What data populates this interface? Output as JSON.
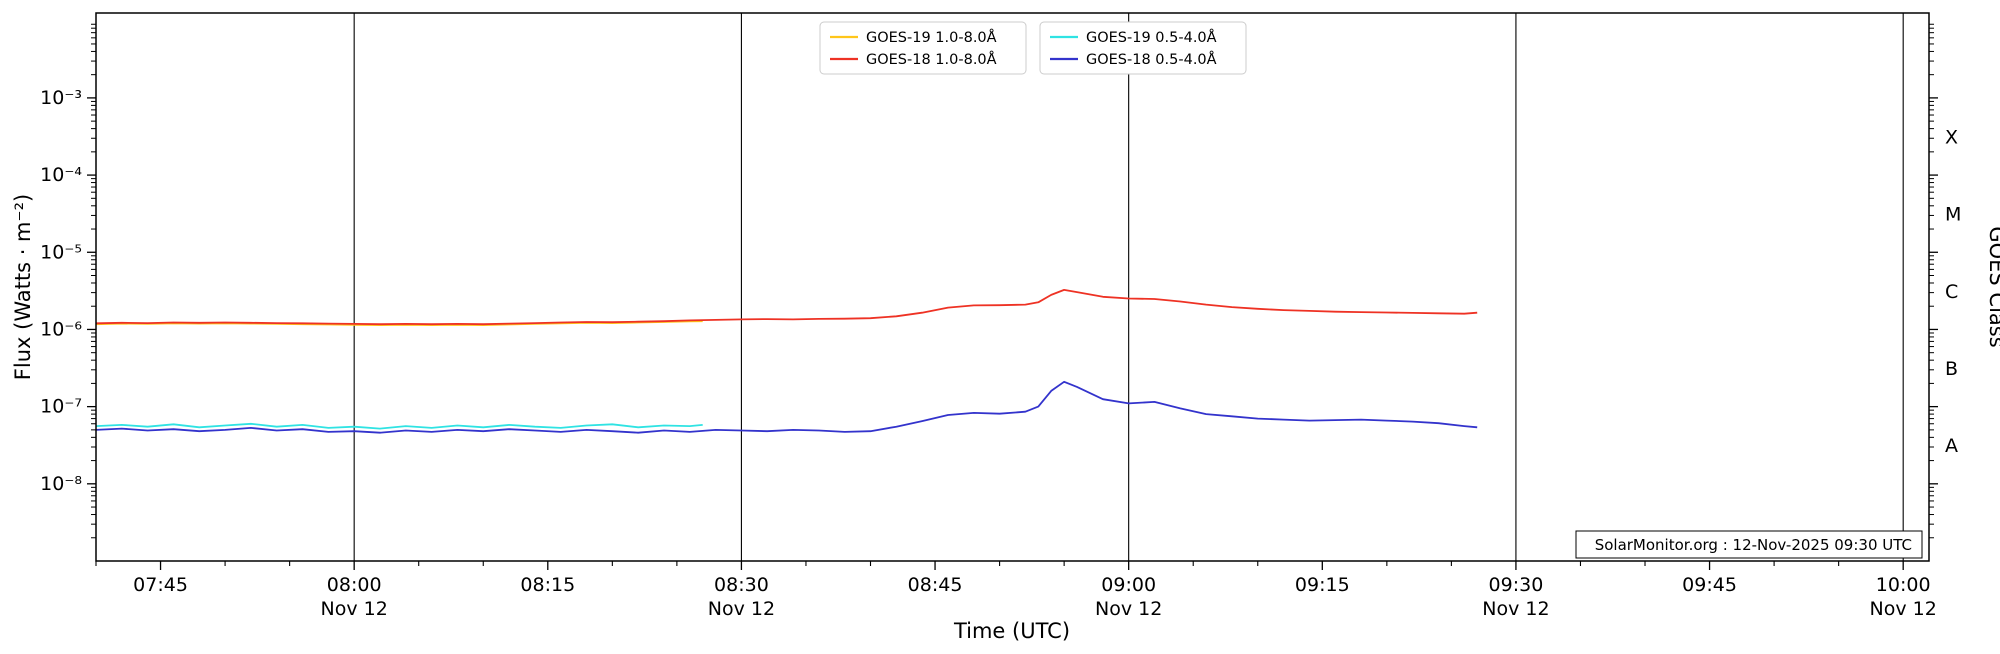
{
  "watermark": "SolarMonitor.org : 12-Nov-2025 09:30 UTC",
  "chart_data": {
    "type": "line",
    "title": "",
    "xlabel": "Time (UTC)",
    "ylabel": "Flux (Watts · m⁻²)",
    "ylabel_right": "GOES Class",
    "x_domain_minutes": [
      460,
      602
    ],
    "y_log_domain": [
      -9,
      -1.9
    ],
    "x_major_ticks": [
      {
        "t": 465,
        "label": "07:45"
      },
      {
        "t": 480,
        "label": "08:00",
        "day": "Nov 12"
      },
      {
        "t": 495,
        "label": "08:15"
      },
      {
        "t": 510,
        "label": "08:30",
        "day": "Nov 12"
      },
      {
        "t": 525,
        "label": "08:45"
      },
      {
        "t": 540,
        "label": "09:00",
        "day": "Nov 12"
      },
      {
        "t": 555,
        "label": "09:15"
      },
      {
        "t": 570,
        "label": "09:30",
        "day": "Nov 12"
      },
      {
        "t": 585,
        "label": "09:45"
      },
      {
        "t": 600,
        "label": "10:00",
        "day": "Nov 12"
      }
    ],
    "y_major_ticks": [
      {
        "exp": -3,
        "label": "10⁻³"
      },
      {
        "exp": -4,
        "label": "10⁻⁴"
      },
      {
        "exp": -5,
        "label": "10⁻⁵"
      },
      {
        "exp": -6,
        "label": "10⁻⁶"
      },
      {
        "exp": -7,
        "label": "10⁻⁷"
      },
      {
        "exp": -8,
        "label": "10⁻⁸"
      }
    ],
    "class_labels": [
      {
        "label": "X",
        "exp": -3.5
      },
      {
        "label": "M",
        "exp": -4.5
      },
      {
        "label": "C",
        "exp": -5.5
      },
      {
        "label": "B",
        "exp": -6.5
      },
      {
        "label": "A",
        "exp": -7.5
      }
    ],
    "vlines_minutes": [
      480,
      510,
      540,
      570,
      600
    ],
    "legend_columns": [
      [
        "GOES-19 1.0-8.0Å",
        "GOES-18 1.0-8.0Å"
      ],
      [
        "GOES-19 0.5-4.0Å",
        "GOES-18 0.5-4.0Å"
      ]
    ],
    "series": [
      {
        "name": "GOES-19 1.0-8.0Å",
        "color": "#ffc61a",
        "points": [
          [
            460,
            1.17e-06
          ],
          [
            462,
            1.19e-06
          ],
          [
            464,
            1.18e-06
          ],
          [
            466,
            1.2e-06
          ],
          [
            468,
            1.19e-06
          ],
          [
            470,
            1.2e-06
          ],
          [
            472,
            1.19e-06
          ],
          [
            474,
            1.18e-06
          ],
          [
            476,
            1.17e-06
          ],
          [
            478,
            1.16e-06
          ],
          [
            480,
            1.15e-06
          ],
          [
            482,
            1.14e-06
          ],
          [
            484,
            1.15e-06
          ],
          [
            486,
            1.14e-06
          ],
          [
            488,
            1.15e-06
          ],
          [
            490,
            1.14e-06
          ],
          [
            492,
            1.16e-06
          ],
          [
            494,
            1.18e-06
          ],
          [
            496,
            1.2e-06
          ],
          [
            498,
            1.22e-06
          ],
          [
            500,
            1.21e-06
          ],
          [
            502,
            1.23e-06
          ],
          [
            504,
            1.25e-06
          ],
          [
            506,
            1.27e-06
          ],
          [
            507,
            1.28e-06
          ]
        ]
      },
      {
        "name": "GOES-18 1.0-8.0Å",
        "color": "#ee3224",
        "points": [
          [
            460,
            1.2e-06
          ],
          [
            462,
            1.22e-06
          ],
          [
            464,
            1.21e-06
          ],
          [
            466,
            1.23e-06
          ],
          [
            468,
            1.22e-06
          ],
          [
            470,
            1.23e-06
          ],
          [
            472,
            1.22e-06
          ],
          [
            474,
            1.21e-06
          ],
          [
            476,
            1.2e-06
          ],
          [
            478,
            1.19e-06
          ],
          [
            480,
            1.18e-06
          ],
          [
            482,
            1.17e-06
          ],
          [
            484,
            1.18e-06
          ],
          [
            486,
            1.17e-06
          ],
          [
            488,
            1.18e-06
          ],
          [
            490,
            1.17e-06
          ],
          [
            492,
            1.19e-06
          ],
          [
            494,
            1.21e-06
          ],
          [
            496,
            1.23e-06
          ],
          [
            498,
            1.25e-06
          ],
          [
            500,
            1.24e-06
          ],
          [
            502,
            1.26e-06
          ],
          [
            504,
            1.28e-06
          ],
          [
            506,
            1.31e-06
          ],
          [
            508,
            1.33e-06
          ],
          [
            510,
            1.35e-06
          ],
          [
            512,
            1.36e-06
          ],
          [
            514,
            1.35e-06
          ],
          [
            516,
            1.37e-06
          ],
          [
            518,
            1.38e-06
          ],
          [
            520,
            1.4e-06
          ],
          [
            522,
            1.48e-06
          ],
          [
            524,
            1.65e-06
          ],
          [
            526,
            1.92e-06
          ],
          [
            528,
            2.05e-06
          ],
          [
            530,
            2.06e-06
          ],
          [
            532,
            2.1e-06
          ],
          [
            533,
            2.25e-06
          ],
          [
            534,
            2.8e-06
          ],
          [
            535,
            3.25e-06
          ],
          [
            536,
            3.05e-06
          ],
          [
            538,
            2.65e-06
          ],
          [
            540,
            2.52e-06
          ],
          [
            542,
            2.48e-06
          ],
          [
            544,
            2.3e-06
          ],
          [
            546,
            2.1e-06
          ],
          [
            548,
            1.95e-06
          ],
          [
            550,
            1.85e-06
          ],
          [
            552,
            1.78e-06
          ],
          [
            554,
            1.74e-06
          ],
          [
            556,
            1.7e-06
          ],
          [
            558,
            1.68e-06
          ],
          [
            560,
            1.66e-06
          ],
          [
            562,
            1.64e-06
          ],
          [
            564,
            1.62e-06
          ],
          [
            566,
            1.6e-06
          ],
          [
            567,
            1.65e-06
          ]
        ]
      },
      {
        "name": "GOES-19 0.5-4.0Å",
        "color": "#2fe3e3",
        "points": [
          [
            460,
            5.6e-08
          ],
          [
            462,
            5.8e-08
          ],
          [
            464,
            5.5e-08
          ],
          [
            466,
            5.9e-08
          ],
          [
            468,
            5.4e-08
          ],
          [
            470,
            5.7e-08
          ],
          [
            472,
            6e-08
          ],
          [
            474,
            5.5e-08
          ],
          [
            476,
            5.8e-08
          ],
          [
            478,
            5.3e-08
          ],
          [
            480,
            5.5e-08
          ],
          [
            482,
            5.2e-08
          ],
          [
            484,
            5.6e-08
          ],
          [
            486,
            5.3e-08
          ],
          [
            488,
            5.7e-08
          ],
          [
            490,
            5.4e-08
          ],
          [
            492,
            5.8e-08
          ],
          [
            494,
            5.5e-08
          ],
          [
            496,
            5.3e-08
          ],
          [
            498,
            5.7e-08
          ],
          [
            500,
            5.9e-08
          ],
          [
            502,
            5.4e-08
          ],
          [
            504,
            5.7e-08
          ],
          [
            506,
            5.6e-08
          ],
          [
            507,
            5.8e-08
          ]
        ]
      },
      {
        "name": "GOES-18 0.5-4.0Å",
        "color": "#3333cc",
        "points": [
          [
            460,
            5e-08
          ],
          [
            462,
            5.2e-08
          ],
          [
            464,
            4.9e-08
          ],
          [
            466,
            5.1e-08
          ],
          [
            468,
            4.8e-08
          ],
          [
            470,
            5e-08
          ],
          [
            472,
            5.3e-08
          ],
          [
            474,
            4.9e-08
          ],
          [
            476,
            5.1e-08
          ],
          [
            478,
            4.7e-08
          ],
          [
            480,
            4.8e-08
          ],
          [
            482,
            4.6e-08
          ],
          [
            484,
            4.9e-08
          ],
          [
            486,
            4.7e-08
          ],
          [
            488,
            5e-08
          ],
          [
            490,
            4.8e-08
          ],
          [
            492,
            5.1e-08
          ],
          [
            494,
            4.9e-08
          ],
          [
            496,
            4.7e-08
          ],
          [
            498,
            5e-08
          ],
          [
            500,
            4.8e-08
          ],
          [
            502,
            4.6e-08
          ],
          [
            504,
            4.9e-08
          ],
          [
            506,
            4.7e-08
          ],
          [
            508,
            5e-08
          ],
          [
            510,
            4.9e-08
          ],
          [
            512,
            4.8e-08
          ],
          [
            514,
            5e-08
          ],
          [
            516,
            4.9e-08
          ],
          [
            518,
            4.7e-08
          ],
          [
            520,
            4.8e-08
          ],
          [
            522,
            5.5e-08
          ],
          [
            524,
            6.5e-08
          ],
          [
            526,
            7.8e-08
          ],
          [
            528,
            8.3e-08
          ],
          [
            530,
            8.1e-08
          ],
          [
            532,
            8.6e-08
          ],
          [
            533,
            1e-07
          ],
          [
            534,
            1.6e-07
          ],
          [
            535,
            2.1e-07
          ],
          [
            536,
            1.8e-07
          ],
          [
            538,
            1.25e-07
          ],
          [
            540,
            1.1e-07
          ],
          [
            542,
            1.15e-07
          ],
          [
            544,
            9.5e-08
          ],
          [
            546,
            8e-08
          ],
          [
            548,
            7.5e-08
          ],
          [
            550,
            7e-08
          ],
          [
            552,
            6.8e-08
          ],
          [
            554,
            6.6e-08
          ],
          [
            556,
            6.7e-08
          ],
          [
            558,
            6.8e-08
          ],
          [
            560,
            6.6e-08
          ],
          [
            562,
            6.4e-08
          ],
          [
            564,
            6.1e-08
          ],
          [
            566,
            5.6e-08
          ],
          [
            567,
            5.4e-08
          ]
        ]
      }
    ]
  }
}
